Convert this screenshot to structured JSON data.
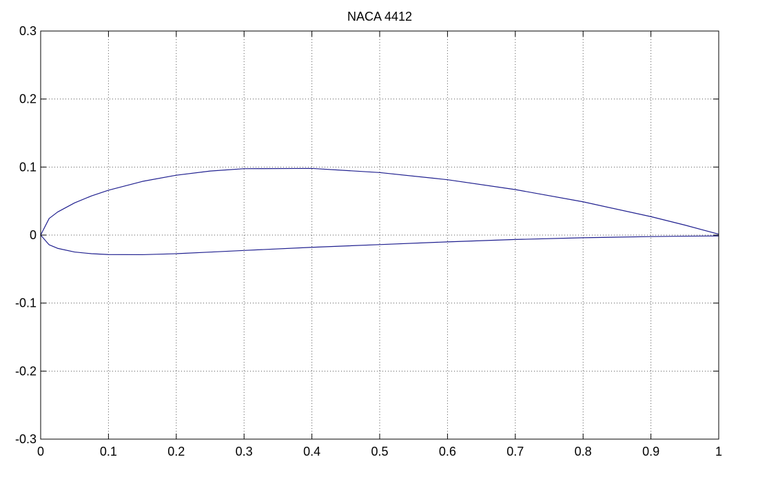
{
  "chart_data": {
    "type": "line",
    "title": "NACA 4412",
    "xlabel": "",
    "ylabel": "",
    "xlim": [
      0,
      1
    ],
    "ylim": [
      -0.3,
      0.3
    ],
    "x_ticks": [
      0,
      0.1,
      0.2,
      0.3,
      0.4,
      0.5,
      0.6,
      0.7,
      0.8,
      0.9,
      1
    ],
    "x_tick_labels": [
      "0",
      "0.1",
      "0.2",
      "0.3",
      "0.4",
      "0.5",
      "0.6",
      "0.7",
      "0.8",
      "0.9",
      "1"
    ],
    "y_ticks": [
      0.3,
      0.2,
      0.1,
      0,
      -0.1,
      -0.2,
      -0.3
    ],
    "y_tick_labels": [
      "0.3",
      "0.2",
      "0.1",
      "0",
      "-0.1",
      "-0.2",
      "-0.3"
    ],
    "grid": true,
    "legend": false,
    "colors": {
      "series": "#1f1f8f",
      "grid": "#555555",
      "axes": "#000000"
    },
    "series": [
      {
        "x": [
          1.0,
          0.95,
          0.9,
          0.8,
          0.7,
          0.6,
          0.5,
          0.4,
          0.3,
          0.25,
          0.2,
          0.15,
          0.1,
          0.075,
          0.05,
          0.025,
          0.0125,
          0.0,
          0.0125,
          0.025,
          0.05,
          0.075,
          0.1,
          0.15,
          0.2,
          0.25,
          0.3,
          0.4,
          0.5,
          0.6,
          0.7,
          0.8,
          0.9,
          0.95,
          1.0
        ],
        "y": [
          0.0013,
          0.0147,
          0.0271,
          0.0489,
          0.0669,
          0.0814,
          0.0919,
          0.098,
          0.0976,
          0.0941,
          0.088,
          0.0789,
          0.0659,
          0.0576,
          0.0473,
          0.0339,
          0.0244,
          0.0,
          -0.0143,
          -0.0195,
          -0.0249,
          -0.0274,
          -0.0286,
          -0.0288,
          -0.0274,
          -0.025,
          -0.0226,
          -0.018,
          -0.014,
          -0.01,
          -0.0065,
          -0.0039,
          -0.0022,
          -0.0016,
          -0.0013
        ]
      }
    ]
  }
}
